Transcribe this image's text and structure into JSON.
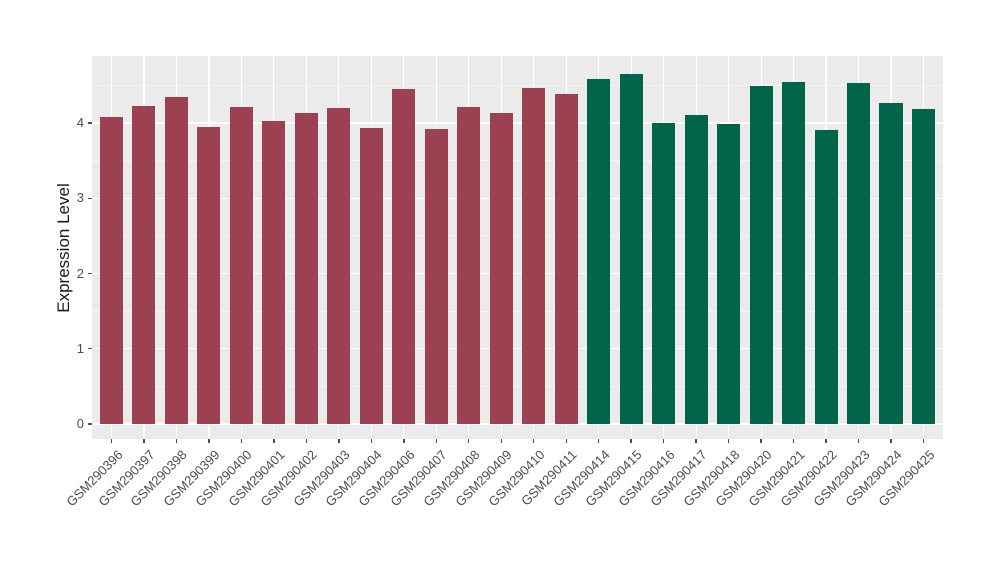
{
  "chart_data": {
    "type": "bar",
    "title": "",
    "xlabel": "",
    "ylabel": "Expression Level",
    "ylim": [
      0,
      4.89
    ],
    "ytick_values": [
      0,
      1,
      2,
      3,
      4
    ],
    "ytick_labels": [
      "0",
      "1",
      "2",
      "3",
      "4"
    ],
    "yminor_values": [
      0.5,
      1.5,
      2.5,
      3.5,
      4.5
    ],
    "grid": "major and minor horizontal white lines, vertical white line per category, on gray panel",
    "legend": "none",
    "categories": [
      "GSM290396",
      "GSM290397",
      "GSM290398",
      "GSM290399",
      "GSM290400",
      "GSM290401",
      "GSM290402",
      "GSM290403",
      "GSM290404",
      "GSM290406",
      "GSM290407",
      "GSM290408",
      "GSM290409",
      "GSM290410",
      "GSM290411",
      "GSM290414",
      "GSM290415",
      "GSM290416",
      "GSM290417",
      "GSM290418",
      "GSM290420",
      "GSM290421",
      "GSM290422",
      "GSM290423",
      "GSM290424",
      "GSM290425"
    ],
    "values": [
      4.08,
      4.22,
      4.34,
      3.95,
      4.21,
      4.02,
      4.13,
      4.2,
      3.93,
      4.45,
      3.92,
      4.21,
      4.13,
      4.46,
      4.38,
      4.58,
      4.65,
      4.0,
      4.11,
      3.99,
      4.49,
      4.54,
      3.91,
      4.53,
      4.26,
      4.18
    ],
    "bar_groups": [
      {
        "count": 15,
        "color": "#9C4151"
      },
      {
        "count": 11,
        "color": "#016649"
      }
    ],
    "colors": {
      "figure_background": "#FFFFFF",
      "panel_background": "#EBEBEB",
      "grid_major": "#FFFFFF",
      "grid_minor": "#F5F5F5",
      "tick_mark": "#4D4D4D",
      "tick_label": "#4D4D4D",
      "axis_title": "#1A1A1A"
    }
  }
}
